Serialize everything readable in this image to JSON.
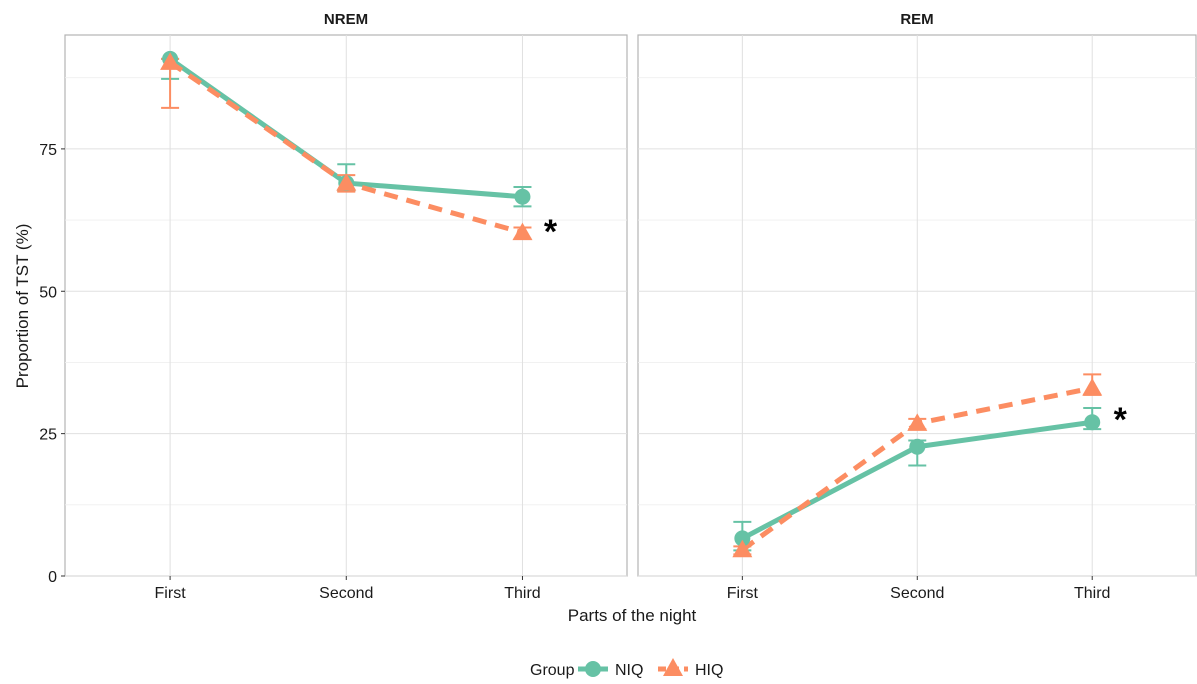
{
  "chart_data": {
    "type": "line",
    "xlabel": "Parts of the night",
    "ylabel": "Proportion of TST (%)",
    "ylim": [
      0,
      95
    ],
    "yticks": [
      0,
      25,
      50,
      75
    ],
    "categories": [
      "First",
      "Second",
      "Third"
    ],
    "grid": true,
    "legend": {
      "title": "Group",
      "placement": "bottom",
      "entries": [
        {
          "name": "NIQ",
          "color": "#66c2a5",
          "marker": "circle",
          "linestyle": "solid"
        },
        {
          "name": "HIQ",
          "color": "#fc8d62",
          "marker": "triangle",
          "linestyle": "dashed"
        }
      ]
    },
    "panels": [
      {
        "title": "NREM",
        "significance": {
          "label": "*",
          "category": "Third",
          "y": 62
        },
        "series": [
          {
            "name": "NIQ",
            "values": [
              90.8,
              69.0,
              66.6
            ],
            "error_low": [
              87.3,
              67.6,
              64.9
            ],
            "error_high": [
              90.8,
              72.3,
              68.3
            ]
          },
          {
            "name": "HIQ",
            "values": [
              90.2,
              69.0,
              60.3
            ],
            "error_low": [
              82.2,
              67.5,
              59.2
            ],
            "error_high": [
              90.8,
              70.4,
              61.2
            ]
          }
        ]
      },
      {
        "title": "REM",
        "significance": {
          "label": "*",
          "category": "Third",
          "y": 29
        },
        "series": [
          {
            "name": "NIQ",
            "values": [
              6.6,
              22.7,
              27.0
            ],
            "error_low": [
              4.5,
              19.4,
              25.8
            ],
            "error_high": [
              9.5,
              23.8,
              29.5
            ]
          },
          {
            "name": "HIQ",
            "values": [
              4.6,
              26.8,
              33.0
            ],
            "error_low": [
              3.8,
              25.8,
              31.8
            ],
            "error_high": [
              5.2,
              27.6,
              35.4
            ]
          }
        ]
      }
    ]
  }
}
